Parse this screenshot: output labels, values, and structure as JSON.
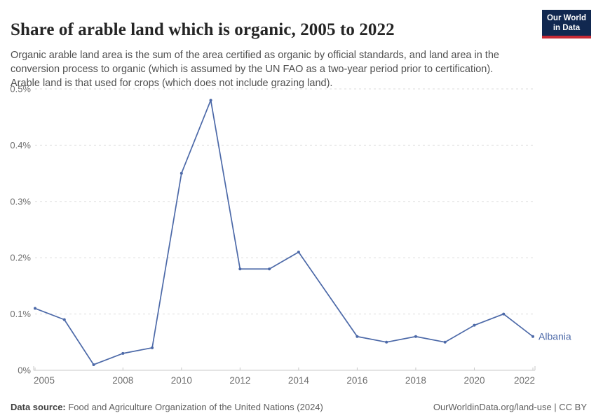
{
  "header": {
    "title": "Share of arable land which is organic, 2005 to 2022",
    "subtitle": "Organic arable land area is the sum of the area certified as organic by official standards, and land area in the conversion process to organic (which is assumed by the UN FAO as a two-year period prior to certification). Arable land is that used for crops (which does not include grazing land).",
    "logo": {
      "line1": "Our World",
      "line2": "in Data"
    }
  },
  "footer": {
    "source_label": "Data source:",
    "source_text": " Food and Agriculture Organization of the United Nations (2024)",
    "link_text": "OurWorldinData.org/land-use | CC BY"
  },
  "chart_data": {
    "type": "line",
    "title": "Share of arable land which is organic, 2005 to 2022",
    "entity": "Albania",
    "unit": "%",
    "x": [
      2005,
      2006,
      2007,
      2008,
      2009,
      2010,
      2011,
      2012,
      2013,
      2014,
      2015,
      2016,
      2017,
      2018,
      2019,
      2020,
      2021,
      2022
    ],
    "series": [
      {
        "name": "Albania",
        "values": [
          0.11,
          0.09,
          0.01,
          0.03,
          0.04,
          0.35,
          0.48,
          0.18,
          0.18,
          0.21,
          null,
          0.06,
          0.05,
          0.06,
          0.05,
          0.08,
          0.1,
          0.06
        ]
      }
    ],
    "xlim": [
      2005,
      2022
    ],
    "ylim": [
      0,
      0.5
    ],
    "x_ticks": [
      2005,
      2008,
      2010,
      2012,
      2014,
      2016,
      2018,
      2020,
      2022
    ],
    "y_ticks": [
      {
        "value": 0,
        "label": "0%"
      },
      {
        "value": 0.1,
        "label": "0.1%"
      },
      {
        "value": 0.2,
        "label": "0.2%"
      },
      {
        "value": 0.3,
        "label": "0.3%"
      },
      {
        "value": 0.4,
        "label": "0.4%"
      },
      {
        "value": 0.5,
        "label": "0.5%"
      }
    ],
    "grid": true,
    "legend_position": "end-of-line",
    "colors": {
      "line": "#4c69a8",
      "grid": "#dddddd",
      "axis": "#c8c8c8",
      "tick_label": "#6e6e6e"
    }
  }
}
